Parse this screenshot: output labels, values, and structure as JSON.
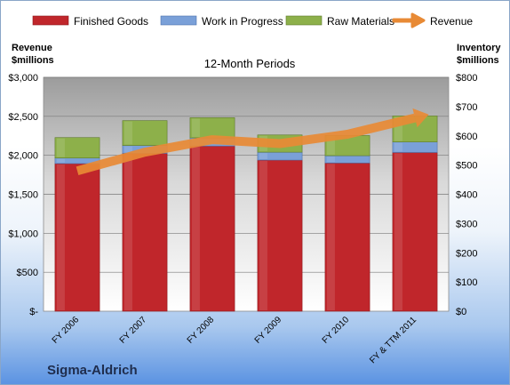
{
  "chart_data": {
    "type": "bar",
    "subtitle": "12-Month Periods",
    "company": "Sigma-Aldrich",
    "categories": [
      "FY 2006",
      "FY 2007",
      "FY 2008",
      "FY 2009",
      "FY 2010",
      "FY & TTM 2011"
    ],
    "left_axis": {
      "label_line1": "Revenue",
      "label_line2": "$millions",
      "range": [
        0,
        3000
      ],
      "ticks": [
        0,
        500,
        1000,
        1500,
        2000,
        2500,
        3000
      ],
      "tick_labels": [
        "$-",
        "$500",
        "$1,000",
        "$1,500",
        "$2,000",
        "$2,500",
        "$3,000"
      ]
    },
    "right_axis": {
      "label_line1": "Inventory",
      "label_line2": "$millions",
      "range": [
        0,
        800
      ],
      "ticks": [
        0,
        100,
        200,
        300,
        400,
        500,
        600,
        700,
        800
      ],
      "tick_labels": [
        "$0",
        "$100",
        "$200",
        "$300",
        "$400",
        "$500",
        "$600",
        "$700",
        "$800"
      ]
    },
    "bar_series": [
      {
        "name": "Finished Goods",
        "color": "#c0262b",
        "values": [
          505,
          540,
          565,
          517,
          507,
          543
        ]
      },
      {
        "name": "Work in Progress",
        "color": "#7aa0d8",
        "values": [
          19,
          27,
          28,
          27,
          25,
          36
        ]
      },
      {
        "name": "Raw Materials",
        "color": "#8db04a",
        "values": [
          70,
          85,
          69,
          59,
          69,
          89
        ]
      }
    ],
    "line_series": {
      "name": "Revenue",
      "color": "#e88a35",
      "values": [
        1800,
        2040,
        2200,
        2150,
        2270,
        2480
      ]
    },
    "grid": true,
    "legend_position": "top"
  }
}
